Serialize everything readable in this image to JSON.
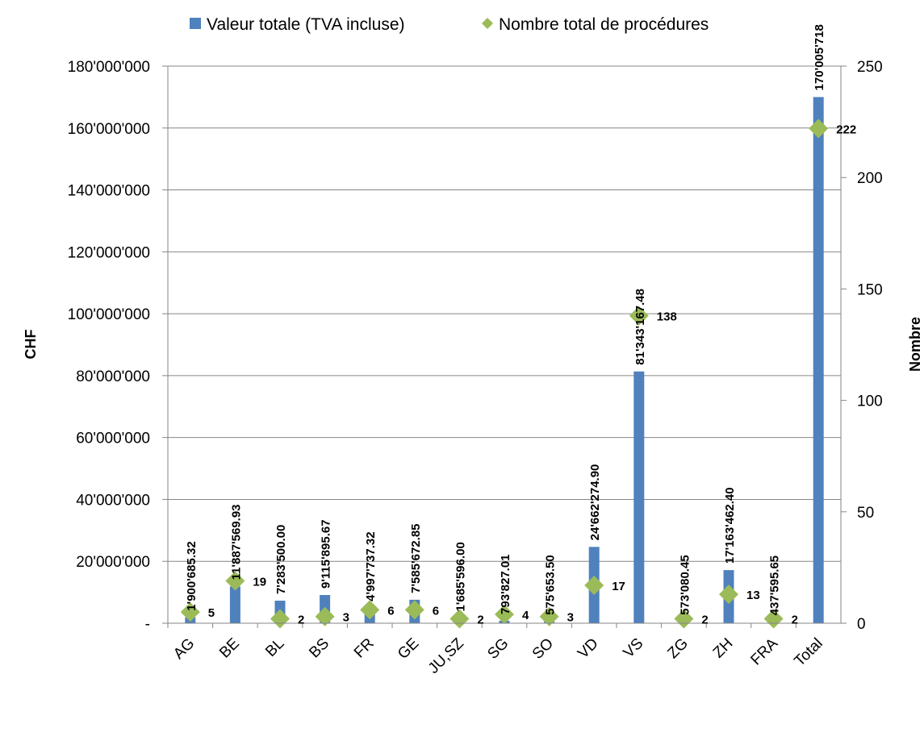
{
  "chart_data": {
    "type": "bar+scatter",
    "categories": [
      "AG",
      "BE",
      "BL",
      "BS",
      "FR",
      "GE",
      "JU,SZ",
      "SG",
      "SO",
      "VD",
      "VS",
      "ZG",
      "ZH",
      "FRA",
      "Total"
    ],
    "series": [
      {
        "name": "Valeur totale (TVA incluse)",
        "type": "bar",
        "axis": "left",
        "color": "#4f81bd",
        "values": [
          1900685.32,
          11887569.93,
          7283500.0,
          9115895.67,
          4997737.32,
          7585672.85,
          1685596.0,
          793827.01,
          575653.5,
          24662274.9,
          81343167.48,
          573080.45,
          17163462.4,
          437595.65,
          170005718
        ],
        "labels": [
          "1'900'685.32",
          "11'887'569.93",
          "7'283'500.00",
          "9'115'895.67",
          "4'997'737.32",
          "7'585'672.85",
          "1'685'596.00",
          "793'827.01",
          "575'653.50",
          "24'662'274.90",
          "81'343'167.48",
          "573'080.45",
          "17'163'462.40",
          "437'595.65",
          "170'005'718"
        ]
      },
      {
        "name": "Nombre total de procédures",
        "type": "scatter",
        "axis": "right",
        "marker": "diamond",
        "color": "#9bbb59",
        "values": [
          5,
          19,
          2,
          3,
          6,
          6,
          2,
          4,
          3,
          17,
          138,
          2,
          13,
          2,
          222
        ],
        "labels": [
          "5",
          "19",
          "2",
          "3",
          "6",
          "6",
          "2",
          "4",
          "3",
          "17",
          "138",
          "2",
          "13",
          "2",
          "222"
        ]
      }
    ],
    "ylabel": "CHF",
    "y2label": "Nombre",
    "ylim": [
      0,
      180000000
    ],
    "y2lim": [
      0,
      250
    ],
    "yticks": [
      "-",
      "20'000'000",
      "40'000'000",
      "60'000'000",
      "80'000'000",
      "100'000'000",
      "120'000'000",
      "140'000'000",
      "160'000'000",
      "180'000'000"
    ],
    "y2ticks": [
      "0",
      "50",
      "100",
      "150",
      "200",
      "250"
    ],
    "grid": true,
    "legend": "top-center"
  }
}
